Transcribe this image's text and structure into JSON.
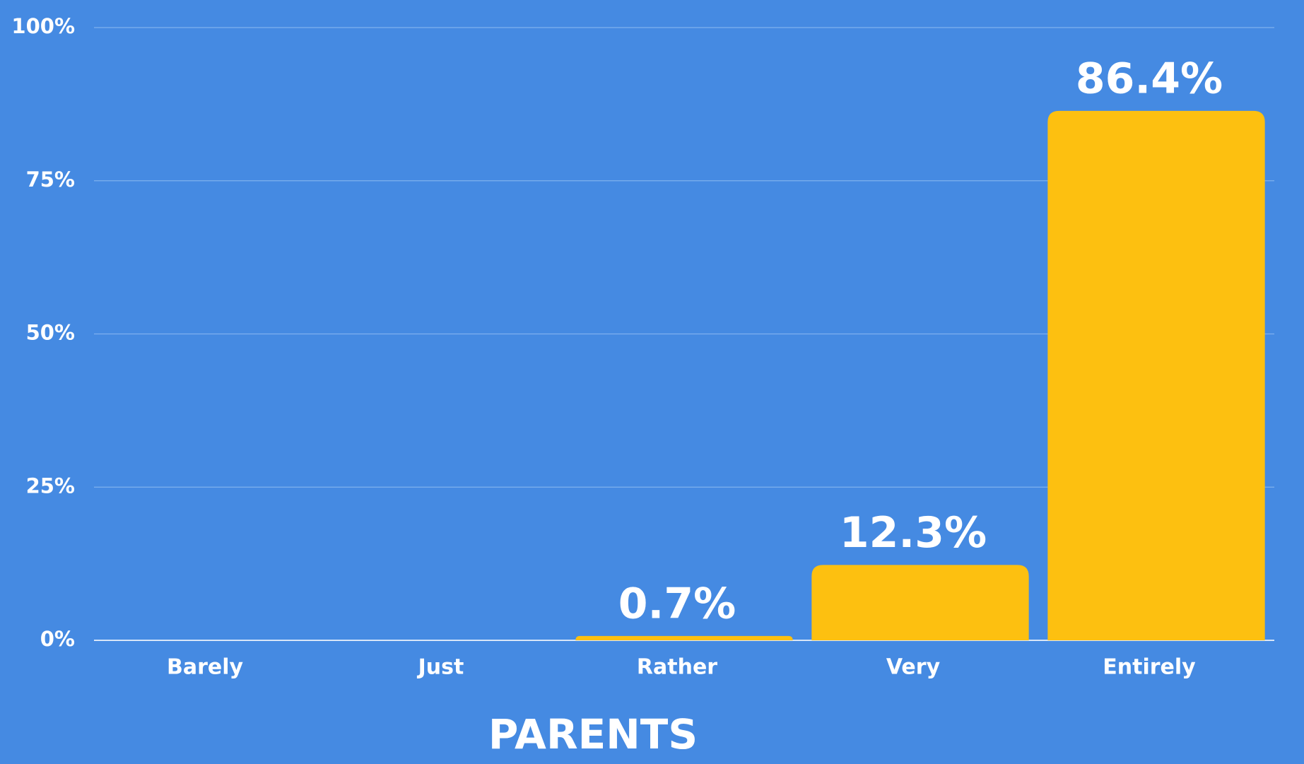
{
  "chart_data": {
    "type": "bar",
    "title": "PARENTS",
    "categories": [
      "Barely",
      "Just",
      "Rather",
      "Very",
      "Entirely"
    ],
    "values": [
      0,
      0,
      0.7,
      12.3,
      86.4
    ],
    "value_labels": [
      null,
      null,
      "0.7%",
      "12.3%",
      "86.4%"
    ],
    "color": "#fdc010",
    "ylim": [
      0,
      100
    ],
    "yticks": [
      {
        "value": 0,
        "label": "0%"
      },
      {
        "value": 25,
        "label": "25%"
      },
      {
        "value": 50,
        "label": "50%"
      },
      {
        "value": 75,
        "label": "75%"
      },
      {
        "value": 100,
        "label": "100%"
      }
    ],
    "grid": true
  }
}
